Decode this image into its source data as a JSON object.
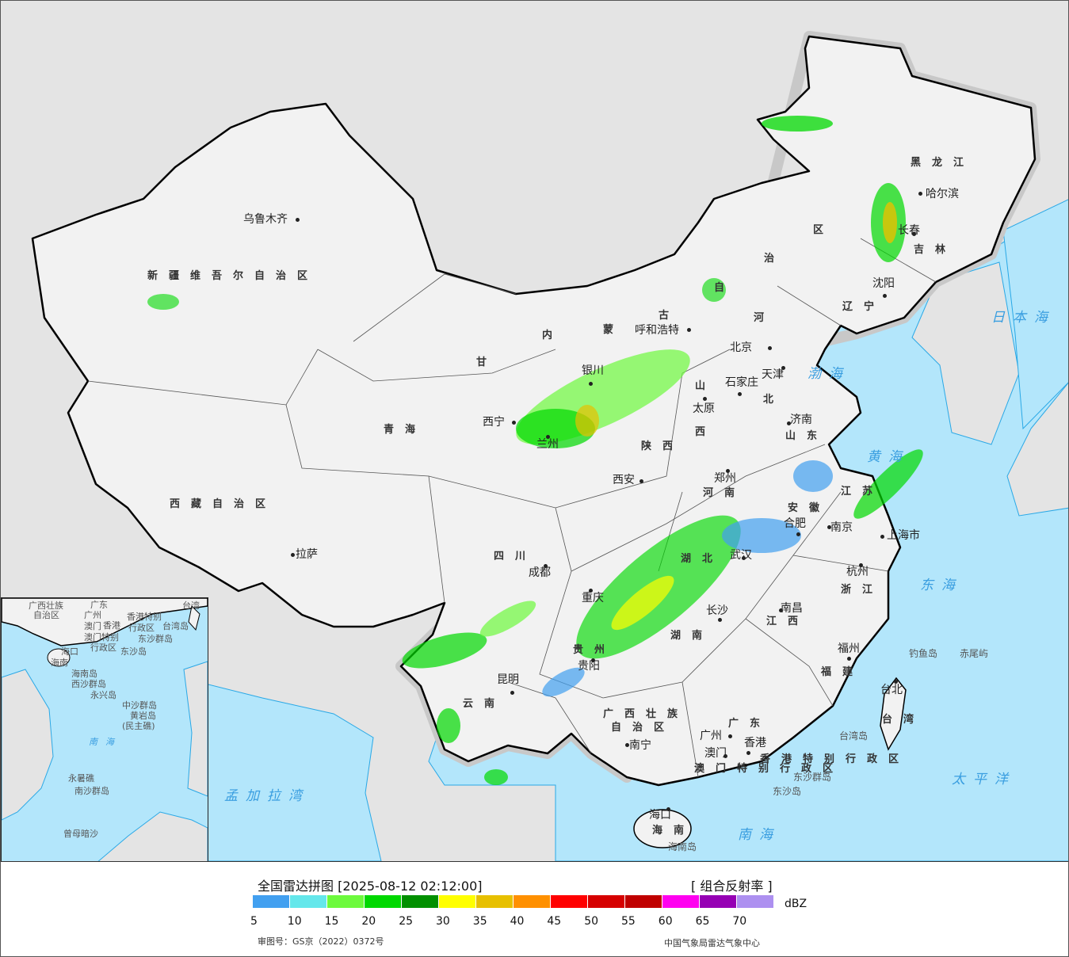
{
  "legend": {
    "title": "全国雷达拼图 [2025-08-12 02:12:00]",
    "product": "[ 组合反射率 ]",
    "unit": "dBZ",
    "ticks": [
      "5",
      "10",
      "15",
      "20",
      "25",
      "30",
      "35",
      "40",
      "45",
      "50",
      "55",
      "60",
      "65",
      "70"
    ],
    "colors": [
      "#42a0f0",
      "#64e7eb",
      "#6dfa3d",
      "#00d800",
      "#019000",
      "#ffff00",
      "#e7c000",
      "#ff9000",
      "#ff0000",
      "#d60000",
      "#c00000",
      "#ff00f0",
      "#9600b4",
      "#ad90f0"
    ],
    "approval": "审图号：GS京（2022）0372号",
    "source": "中国气象局雷达气象中心"
  },
  "colors": {
    "land": "#f2f2f2",
    "foreign_land": "#e4e4e4",
    "sea": "#b3e6fb",
    "border": "#000000",
    "halo": "#c8c8c8"
  },
  "map": {
    "cities": [
      "乌鲁木齐",
      "哈尔滨",
      "长春",
      "沈阳",
      "呼和浩特",
      "北京",
      "天津",
      "石家庄",
      "太原",
      "济南",
      "西宁",
      "银川",
      "兰州",
      "西安",
      "郑州",
      "合肥",
      "南京",
      "上海市",
      "杭州",
      "武汉",
      "成都",
      "重庆",
      "长沙",
      "南昌",
      "拉萨",
      "贵阳",
      "昆明",
      "福州",
      "台北",
      "南宁",
      "广州",
      "澳门",
      "香港",
      "海口"
    ],
    "provinces": [
      "新疆维吾尔自治区",
      "西藏自治区",
      "青海",
      "甘",
      "黑龙江",
      "吉林",
      "辽宁",
      "河",
      "北",
      "山东",
      "山",
      "西",
      "陕西",
      "河南",
      "江苏",
      "安徽",
      "湖北",
      "四川",
      "湖南",
      "江西",
      "浙江",
      "福建",
      "贵州",
      "云南",
      "广西壮族",
      "自治区",
      "广东",
      "海南",
      "台湾",
      "香港特别行政区",
      "澳门特别行政区",
      "内",
      "蒙",
      "古",
      "自",
      "治",
      "区"
    ],
    "seas": [
      "渤海",
      "黄海",
      "东海",
      "日本海",
      "太平洋",
      "南海",
      "孟加拉湾"
    ],
    "islands": [
      "钓鱼岛",
      "赤尾屿",
      "台湾岛",
      "东沙群岛",
      "东沙岛",
      "海南岛"
    ]
  },
  "inset": {
    "labels": [
      "广西壮族",
      "自治区",
      "广东",
      "台湾",
      "广州",
      "澳门",
      "香港",
      "香港特别",
      "行政区",
      "澳门特别",
      "行政区",
      "台湾岛",
      "东沙群岛",
      "东沙岛",
      "海口",
      "海南",
      "海南岛",
      "西沙群岛",
      "永兴岛",
      "中沙群岛",
      "黄岩岛",
      "(民主礁)",
      "南海",
      "永暑礁",
      "南沙群岛",
      "曾母暗沙"
    ]
  }
}
